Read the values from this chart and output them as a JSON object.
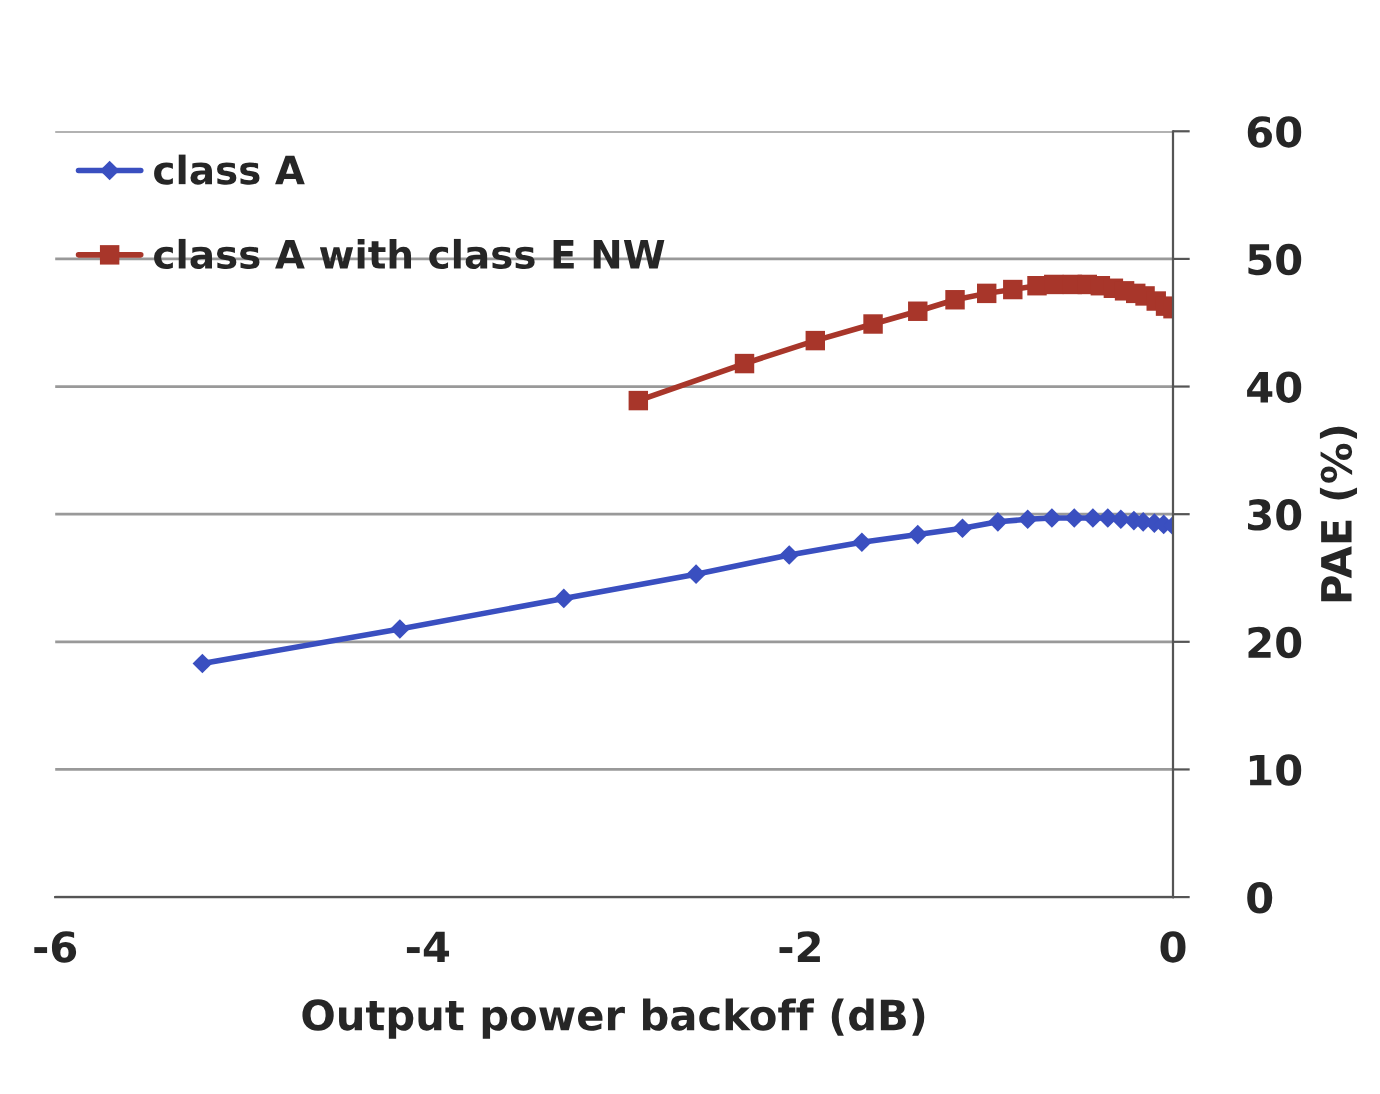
{
  "chart_data": {
    "type": "line",
    "xlabel": "Output power backoff (dB)",
    "ylabel": "PAE (%)",
    "xlim": [
      -6,
      0
    ],
    "xticks": [
      -6,
      -4,
      -2,
      0
    ],
    "ylim": [
      0,
      60
    ],
    "yticks": [
      0,
      10,
      20,
      30,
      40,
      50,
      60
    ],
    "grid": "y",
    "legend": "top left",
    "series": [
      {
        "name": "class A",
        "color": "#3a4fc0",
        "marker": "diamond",
        "x": [
          -5.21,
          -4.15,
          -3.27,
          -2.56,
          -2.06,
          -1.67,
          -1.37,
          -1.13,
          -0.94,
          -0.78,
          -0.65,
          -0.53,
          -0.43,
          -0.35,
          -0.28,
          -0.21,
          -0.16,
          -0.1,
          -0.05,
          0
        ],
        "values": [
          18.3,
          21.0,
          23.4,
          25.3,
          26.8,
          27.8,
          28.4,
          28.9,
          29.4,
          29.6,
          29.7,
          29.7,
          29.7,
          29.7,
          29.6,
          29.5,
          29.4,
          29.3,
          29.2,
          29.1
        ]
      },
      {
        "name": "class A with class E NW",
        "color": "#a8362a",
        "marker": "square",
        "x": [
          -2.87,
          -2.3,
          -1.92,
          -1.61,
          -1.37,
          -1.17,
          -1.0,
          -0.86,
          -0.73,
          -0.64,
          -0.54,
          -0.46,
          -0.39,
          -0.32,
          -0.26,
          -0.2,
          -0.15,
          -0.09,
          -0.04,
          0
        ],
        "values": [
          38.9,
          41.8,
          43.6,
          44.9,
          45.9,
          46.8,
          47.3,
          47.6,
          47.9,
          48.0,
          48.0,
          48.0,
          47.9,
          47.7,
          47.5,
          47.3,
          47.1,
          46.7,
          46.3,
          46.1
        ]
      }
    ]
  }
}
